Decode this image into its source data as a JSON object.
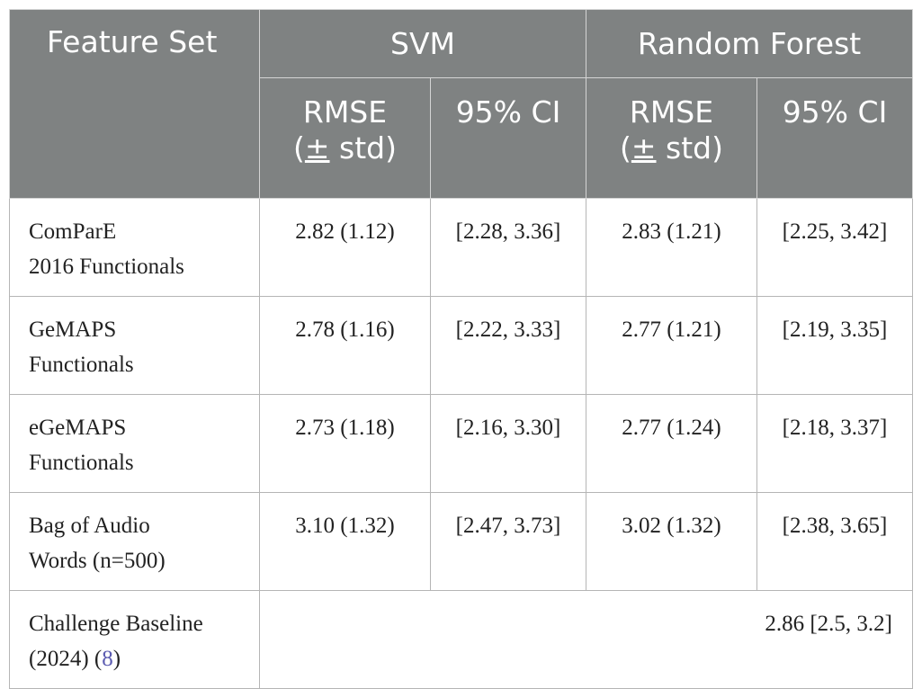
{
  "header": {
    "feature_set": "Feature Set",
    "svm": "SVM",
    "rf": "Random Forest",
    "rmse_line1": "RMSE",
    "rmse_pm": "±",
    "rmse_std": " std)",
    "rmse_open": "(",
    "ci": "95% CI"
  },
  "rows": [
    {
      "name_l1": "ComParE",
      "name_l2": "2016 Functionals",
      "svm_rmse": "2.82 (1.12)",
      "svm_ci": "[2.28, 3.36]",
      "rf_rmse": "2.83 (1.21)",
      "rf_ci": "[2.25, 3.42]"
    },
    {
      "name_l1": "GeMAPS",
      "name_l2": "Functionals",
      "svm_rmse": "2.78 (1.16)",
      "svm_ci": "[2.22, 3.33]",
      "rf_rmse": "2.77 (1.21)",
      "rf_ci": "[2.19, 3.35]"
    },
    {
      "name_l1": "eGeMAPS",
      "name_l2": "Functionals",
      "svm_rmse": "2.73 (1.18)",
      "svm_ci": "[2.16, 3.30]",
      "rf_rmse": "2.77 (1.24)",
      "rf_ci": "[2.18, 3.37]"
    },
    {
      "name_l1": "Bag of Audio",
      "name_l2": "Words (n=500)",
      "svm_rmse": "3.10 (1.32)",
      "svm_ci": "[2.47, 3.73]",
      "rf_rmse": "3.02 (1.32)",
      "rf_ci": "[2.38, 3.65]"
    }
  ],
  "baseline": {
    "name_l1": "Challenge Baseline",
    "name_l2_prefix": "(2024) (",
    "ref": "8",
    "name_l2_suffix": ")",
    "value": "2.86 [2.5, 3.2]"
  },
  "colors": {
    "header_bg": "#7f8282",
    "header_text": "#ffffff",
    "ref_link": "#5a5ab0"
  }
}
